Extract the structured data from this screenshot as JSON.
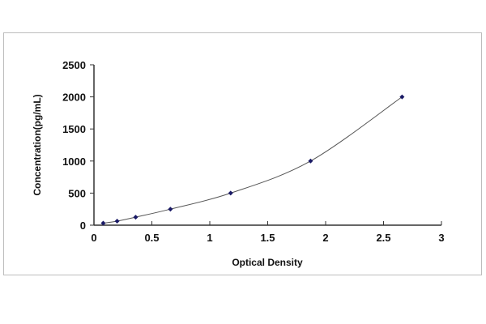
{
  "chart_data": {
    "type": "scatter",
    "title": "",
    "xlabel": "Optical Density",
    "ylabel": "Concentration(pg/mL)",
    "xlim": [
      0,
      3
    ],
    "ylim": [
      0,
      2500
    ],
    "xticks": [
      "0",
      "0.5",
      "1",
      "1.5",
      "2",
      "2.5",
      "3"
    ],
    "yticks": [
      "0",
      "500",
      "1000",
      "1500",
      "2000",
      "2500"
    ],
    "grid": false,
    "legend": "none",
    "trendline": "smooth curve fit",
    "marker_color": "#1a1a66",
    "line_color": "#555555",
    "series": [
      {
        "x": [
          0.08,
          0.2,
          0.36,
          0.66,
          1.18,
          1.87,
          2.66
        ],
        "y": [
          31.25,
          62.5,
          125,
          250,
          500,
          1000,
          2000
        ]
      }
    ]
  }
}
